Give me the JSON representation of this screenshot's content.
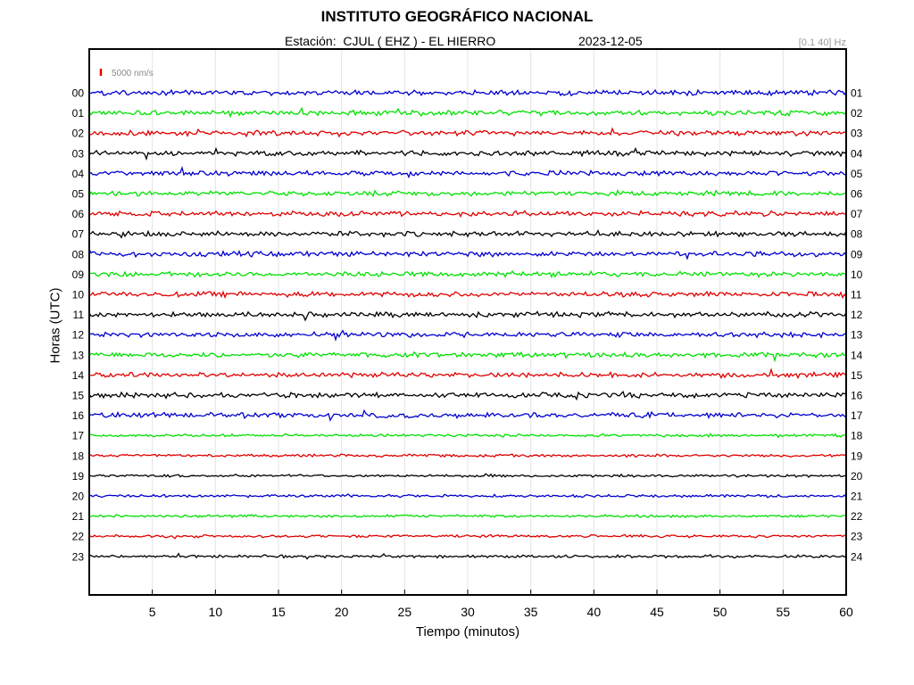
{
  "header": {
    "title": "INSTITUTO GEOGRÁFICO NACIONAL",
    "station": "Estación:  CJUL ( EHZ ) - EL HIERRO",
    "date": "2023-12-05",
    "filter": "[0.1 40] Hz"
  },
  "scale": {
    "label": "5000 nm/s",
    "color": "#e00000"
  },
  "chart_data": {
    "type": "line",
    "title": "INSTITUTO GEOGRÁFICO NACIONAL",
    "xlabel": "Tiempo (minutos)",
    "ylabel": "Horas (UTC)",
    "xlim": [
      0,
      60
    ],
    "x_ticks": [
      5,
      10,
      15,
      20,
      25,
      30,
      35,
      40,
      45,
      50,
      55,
      60
    ],
    "grid": "vertical",
    "left_hour_labels": [
      "00",
      "01",
      "02",
      "03",
      "04",
      "05",
      "06",
      "07",
      "08",
      "09",
      "10",
      "11",
      "12",
      "13",
      "14",
      "15",
      "16",
      "17",
      "18",
      "19",
      "20",
      "21",
      "22",
      "23"
    ],
    "right_hour_labels": [
      "01",
      "02",
      "03",
      "04",
      "05",
      "06",
      "07",
      "08",
      "09",
      "10",
      "11",
      "12",
      "13",
      "14",
      "15",
      "16",
      "17",
      "18",
      "19",
      "20",
      "21",
      "22",
      "23",
      "24"
    ],
    "trace_colors": [
      "#0000d0",
      "#00e000",
      "#e00000",
      "#000000"
    ]
  }
}
